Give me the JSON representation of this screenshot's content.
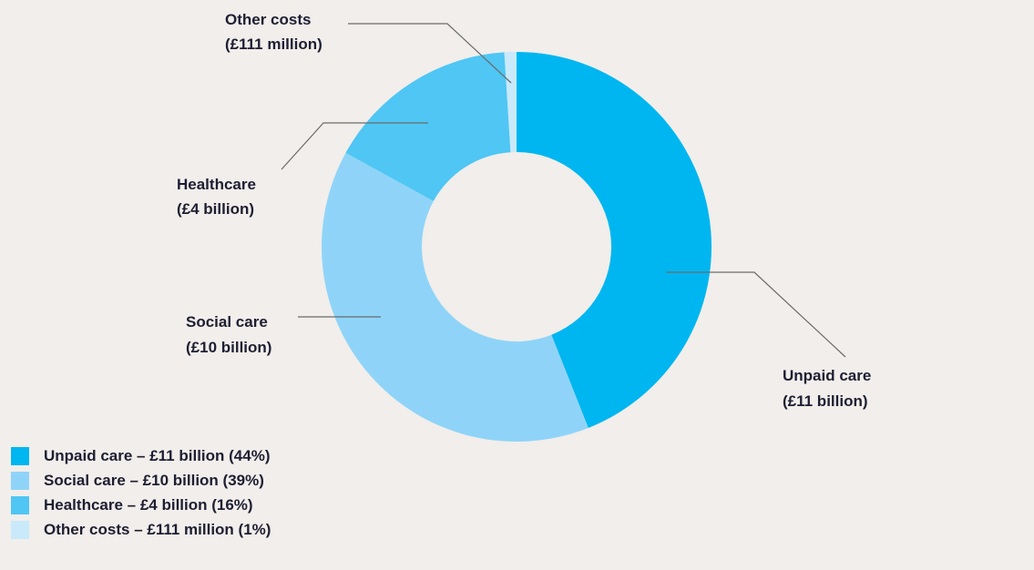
{
  "chart_data": {
    "type": "donut",
    "slices": [
      {
        "label": "Unpaid care",
        "value_text": "£11 billion",
        "percent": 44,
        "color": "#00b6f0",
        "legend": "Unpaid care – £11 billion (44%)",
        "callout": [
          "Unpaid care",
          "(£11 billion)"
        ]
      },
      {
        "label": "Social care",
        "value_text": "£10 billion",
        "percent": 39,
        "color": "#8fd4f8",
        "legend": "Social care – £10 billion (39%)",
        "callout": [
          "Social care",
          "(£10 billion)"
        ]
      },
      {
        "label": "Healthcare",
        "value_text": "£4 billion",
        "percent": 16,
        "color": "#4fc6f4",
        "legend": "Healthcare – £4 billion (16%)",
        "callout": [
          "Healthcare",
          "(£4 billion)"
        ]
      },
      {
        "label": "Other costs",
        "value_text": "£111 million",
        "percent": 1,
        "color": "#c8eafb",
        "legend": "Other costs – £111 million (1%)",
        "callout": [
          "Other costs",
          "(£111 million)"
        ]
      }
    ],
    "legend_position": "bottom-left",
    "background": "#f1eeeb"
  }
}
